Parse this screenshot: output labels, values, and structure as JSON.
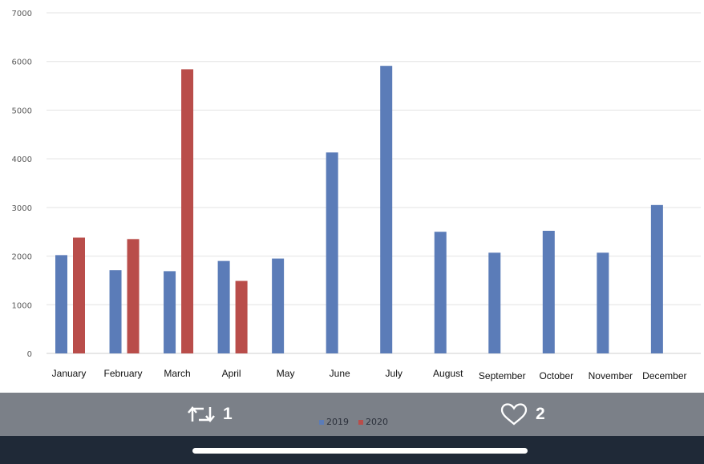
{
  "chart_data": {
    "type": "bar",
    "categories": [
      "January",
      "February",
      "March",
      "April",
      "May",
      "June",
      "July",
      "August",
      "September",
      "October",
      "November",
      "December"
    ],
    "series": [
      {
        "name": "2019",
        "color": "#5b7cb8",
        "values": [
          2020,
          1710,
          1690,
          1900,
          1950,
          4130,
          5910,
          2500,
          2070,
          2520,
          2070,
          3050
        ]
      },
      {
        "name": "2020",
        "color": "#b94d4a",
        "values": [
          2380,
          2350,
          5840,
          1490,
          null,
          null,
          null,
          null,
          null,
          null,
          null,
          null
        ]
      }
    ],
    "yticks": [
      0,
      1000,
      2000,
      3000,
      4000,
      5000,
      6000,
      7000
    ],
    "ylim": [
      0,
      7000
    ],
    "grid": true,
    "legend_position": "bottom-center"
  },
  "legend": {
    "items": [
      {
        "label": "2019",
        "color": "#5b7cb8"
      },
      {
        "label": "2020",
        "color": "#b94d4a"
      }
    ]
  },
  "social": {
    "retweet_count": "1",
    "like_count": "2",
    "retweet_icon": "retweet-icon",
    "like_icon": "heart-icon"
  }
}
